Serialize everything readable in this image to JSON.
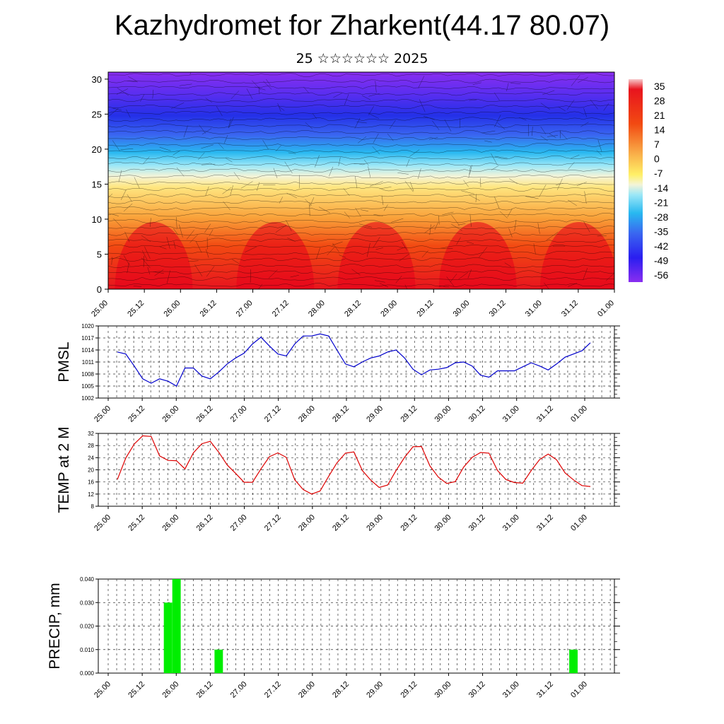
{
  "title": "Kazhydromet for Zharkent(44.17 80.07)",
  "subtitle": "25 ☆☆☆☆☆☆ 2025",
  "chart_data": [
    {
      "type": "heatmap",
      "name": "cross-section",
      "yticks": [
        0,
        5,
        10,
        15,
        20,
        25,
        30
      ],
      "ylim": [
        0,
        31
      ],
      "xticks": [
        "25.00",
        "25.12",
        "26.00",
        "26.12",
        "27.00",
        "27.12",
        "28.00",
        "28.12",
        "29.00",
        "29.12",
        "30.00",
        "30.12",
        "31.00",
        "31.12",
        "01.00"
      ],
      "colorbar_labels": [
        "35",
        "28",
        "21",
        "14",
        "7",
        "0",
        "-7",
        "-14",
        "-21",
        "-28",
        "-35",
        "-42",
        "-49",
        "-56"
      ],
      "colorscale": [
        "#f7c9cb",
        "#e8141e",
        "#f36a12",
        "#f9b04a",
        "#fff066",
        "#f4f4d8",
        "#9be7f7",
        "#28b8f0",
        "#3a66f0",
        "#3a1ef0",
        "#8a2ef0"
      ]
    },
    {
      "type": "line",
      "name": "pmsl",
      "ylabel": "PMSL",
      "ylim": [
        1002,
        1020
      ],
      "yticks": [
        1002,
        1005,
        1008,
        1011,
        1014,
        1017,
        1020
      ],
      "xticks": [
        "25.00",
        "25.12",
        "26.00",
        "26.12",
        "27.00",
        "27.12",
        "28.00",
        "28.12",
        "29.00",
        "29.12",
        "30.00",
        "30.12",
        "31.00",
        "31.12",
        "01.00"
      ],
      "color": "#0000cc",
      "values": [
        1013.5,
        1013.0,
        1010.0,
        1006.8,
        1005.7,
        1006.8,
        1006.2,
        1005.0,
        1009.5,
        1009.5,
        1007.5,
        1006.8,
        1008.5,
        1010.5,
        1012.0,
        1013.2,
        1015.5,
        1017.2,
        1015.0,
        1013.0,
        1012.5,
        1015.5,
        1017.5,
        1017.5,
        1018.0,
        1017.5,
        1014.0,
        1010.5,
        1009.8,
        1011.0,
        1012.0,
        1012.5,
        1013.5,
        1014.0,
        1012.0,
        1009.2,
        1007.8,
        1009.0,
        1009.2,
        1009.6,
        1010.8,
        1011.0,
        1010.0,
        1007.7,
        1007.2,
        1008.8,
        1008.8,
        1008.8,
        1009.8,
        1010.8,
        1010.0,
        1009.0,
        1010.5,
        1012.2,
        1013.0,
        1013.8,
        1015.8
      ]
    },
    {
      "type": "line",
      "name": "temp",
      "ylabel": "TEMP at 2 M",
      "ylim": [
        8,
        32
      ],
      "yticks": [
        8,
        12,
        16,
        20,
        24,
        28,
        32
      ],
      "xticks": [
        "25.00",
        "25.12",
        "26.00",
        "26.12",
        "27.00",
        "27.12",
        "28.00",
        "28.12",
        "29.00",
        "29.12",
        "30.00",
        "30.12",
        "31.00",
        "31.12",
        "01.00"
      ],
      "color": "#dd0000",
      "values": [
        16.8,
        23.9,
        28.5,
        31.2,
        31.0,
        24.6,
        23.1,
        23.0,
        20.3,
        25.6,
        28.6,
        29.4,
        25.8,
        21.6,
        18.8,
        15.9,
        15.9,
        20.3,
        24.3,
        25.6,
        24.1,
        16.7,
        13.5,
        12.0,
        13.0,
        17.8,
        22.3,
        25.5,
        25.9,
        19.8,
        16.6,
        14.2,
        15.0,
        19.8,
        24.1,
        27.6,
        27.7,
        21.3,
        17.6,
        15.5,
        16.1,
        20.9,
        24.1,
        25.7,
        25.5,
        19.8,
        16.8,
        15.8,
        15.6,
        19.8,
        23.4,
        25.2,
        23.3,
        19.0,
        16.7,
        14.8,
        14.5
      ]
    },
    {
      "type": "bar",
      "name": "precip",
      "ylabel": "PRECIP, mm",
      "ylim": [
        0,
        0.04
      ],
      "yticks": [
        "0.000",
        "0.010",
        "0.020",
        "0.030",
        "0.040"
      ],
      "xticks": [
        "25.00",
        "25.12",
        "26.00",
        "26.12",
        "27.00",
        "27.12",
        "28.00",
        "28.12",
        "29.00",
        "29.12",
        "30.00",
        "30.12",
        "31.00",
        "31.12",
        "01.00"
      ],
      "color": "#00ee00",
      "values": [
        0,
        0,
        0,
        0,
        0,
        0,
        0.03,
        0.04,
        0,
        0,
        0,
        0,
        0.01,
        0,
        0,
        0,
        0,
        0,
        0,
        0,
        0,
        0,
        0,
        0,
        0,
        0,
        0,
        0,
        0,
        0,
        0,
        0,
        0,
        0,
        0,
        0,
        0,
        0,
        0,
        0,
        0,
        0,
        0,
        0,
        0,
        0,
        0,
        0,
        0,
        0,
        0,
        0,
        0,
        0,
        0.01,
        0,
        0
      ]
    }
  ]
}
